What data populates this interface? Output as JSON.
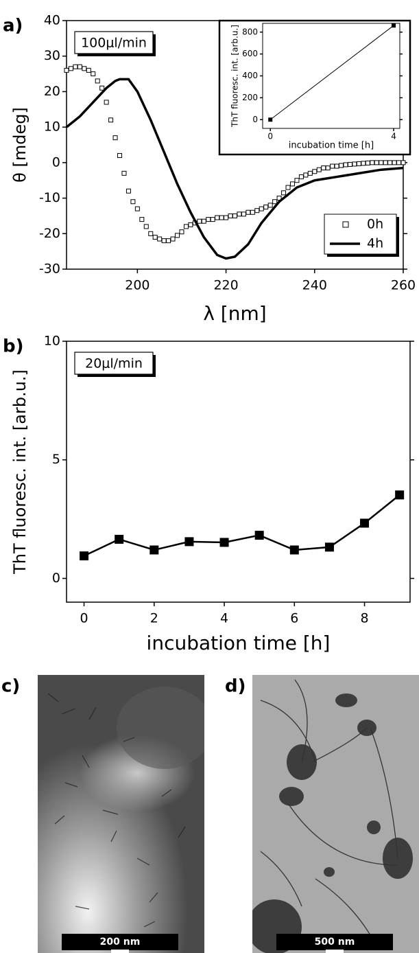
{
  "chart_data": [
    {
      "type": "line",
      "panel_label": "a)",
      "annotation": "100μl/min",
      "xlabel": "λ [nm]",
      "ylabel": "θ [mdeg]",
      "xlim": [
        184,
        260
      ],
      "ylim": [
        -30,
        40
      ],
      "xticks": [
        200,
        220,
        240,
        260
      ],
      "yticks": [
        -30,
        -20,
        -10,
        0,
        10,
        20,
        30,
        40
      ],
      "legend": "lower right",
      "series": [
        {
          "name": "0h",
          "color": "#000000",
          "marker": "open-square",
          "line": false,
          "x": [
            184,
            185,
            186,
            187,
            188,
            189,
            190,
            191,
            192,
            193,
            194,
            195,
            196,
            197,
            198,
            199,
            200,
            201,
            202,
            203,
            204,
            205,
            206,
            207,
            208,
            209,
            210,
            211,
            212,
            213,
            214,
            215,
            216,
            217,
            218,
            219,
            220,
            221,
            222,
            223,
            224,
            225,
            226,
            227,
            228,
            229,
            230,
            231,
            232,
            233,
            234,
            235,
            236,
            237,
            238,
            239,
            240,
            241,
            242,
            243,
            244,
            245,
            246,
            247,
            248,
            249,
            250,
            251,
            252,
            253,
            254,
            255,
            256,
            257,
            258,
            259,
            260
          ],
          "values": [
            26,
            26.5,
            27,
            27,
            26.5,
            26,
            25,
            23,
            21,
            17,
            12,
            7,
            2,
            -3,
            -8,
            -11,
            -13,
            -16,
            -18,
            -20,
            -21,
            -21.5,
            -22,
            -22,
            -21.5,
            -20.5,
            -19.5,
            -18,
            -17.5,
            -17,
            -16.5,
            -16.5,
            -16,
            -16,
            -15.5,
            -15.5,
            -15.5,
            -15,
            -15,
            -14.5,
            -14.5,
            -14,
            -14,
            -13.5,
            -13,
            -12.5,
            -12,
            -11,
            -10,
            -8.5,
            -7,
            -6,
            -5,
            -4,
            -3.5,
            -3,
            -2.5,
            -2,
            -1.5,
            -1.5,
            -1,
            -1,
            -0.8,
            -0.6,
            -0.5,
            -0.4,
            -0.3,
            -0.2,
            -0.1,
            0,
            0,
            0,
            0,
            0,
            0,
            0,
            0
          ]
        },
        {
          "name": "4h",
          "color": "#000000",
          "marker": null,
          "line": true,
          "x": [
            184,
            187,
            190,
            193,
            195,
            196,
            198,
            200,
            203,
            206,
            209,
            212,
            215,
            218,
            220,
            222,
            225,
            228,
            232,
            236,
            240,
            245,
            250,
            255,
            260
          ],
          "values": [
            10,
            13,
            17,
            21,
            23,
            23.5,
            23.5,
            20,
            12,
            3,
            -6,
            -14,
            -21,
            -26,
            -27,
            -26.5,
            -23,
            -17,
            -11,
            -7,
            -5,
            -4,
            -3,
            -2,
            -1.5
          ]
        }
      ]
    },
    {
      "type": "line",
      "xlabel": "incubation time [h]",
      "ylabel": "ThT fluoresc. int. [arb.u.]",
      "xlim": [
        -0.25,
        4.2
      ],
      "ylim": [
        -80,
        880
      ],
      "xticks": [
        0,
        4
      ],
      "yticks": [
        0,
        200,
        400,
        600,
        800
      ],
      "series": [
        {
          "color": "#000000",
          "marker": "square",
          "line": true,
          "x": [
            0,
            4
          ],
          "values": [
            0,
            860
          ]
        }
      ]
    },
    {
      "type": "line",
      "panel_label": "b)",
      "annotation": "20μl/min",
      "xlabel": "incubation time [h]",
      "ylabel": "ThT fluoresc. int. [arb.u.]",
      "xlim": [
        -0.5,
        9.3
      ],
      "ylim": [
        -1,
        10
      ],
      "xticks": [
        0,
        2,
        4,
        6,
        8
      ],
      "yticks": [
        0,
        5,
        10
      ],
      "series": [
        {
          "color": "#000000",
          "marker": "square",
          "line": true,
          "x": [
            0,
            1,
            2,
            3,
            4,
            5,
            6,
            7,
            8,
            9
          ],
          "values": [
            0.95,
            1.65,
            1.2,
            1.55,
            1.52,
            1.82,
            1.2,
            1.32,
            2.33,
            3.52
          ]
        }
      ]
    }
  ],
  "micrographs": [
    {
      "panel_label": "c)",
      "scale_bar": "200 nm"
    },
    {
      "panel_label": "d)",
      "scale_bar": "500 nm"
    }
  ]
}
